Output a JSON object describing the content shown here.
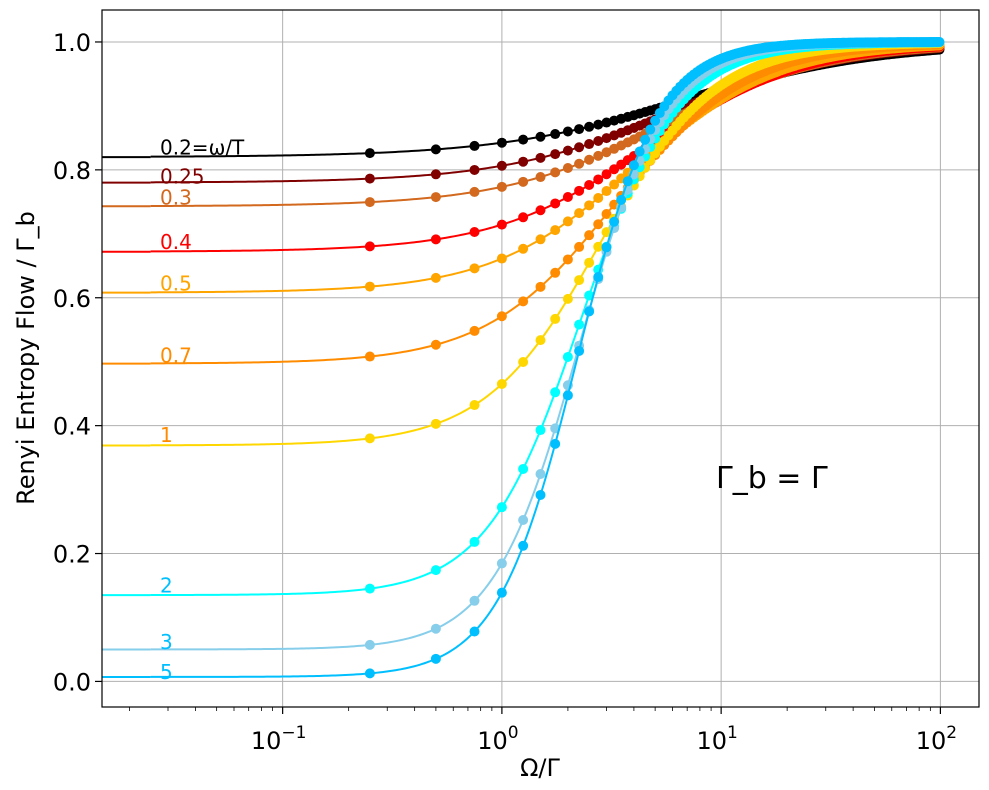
{
  "chart_data": {
    "type": "line",
    "xscale": "log",
    "xlim": [
      0.015,
      150
    ],
    "ylim": [
      -0.04,
      1.05
    ],
    "xlabel": "Ω/Γ",
    "ylabel": "Renyi Entropy Flow / Γ_b",
    "annotation": "Γ_b = Γ",
    "x_ticks": [
      {
        "value": 0.1,
        "base": "10",
        "exp": "−1"
      },
      {
        "value": 1,
        "base": "10",
        "exp": "0"
      },
      {
        "value": 10,
        "base": "10",
        "exp": "1"
      },
      {
        "value": 100,
        "base": "10",
        "exp": "2"
      }
    ],
    "y_ticks": [
      {
        "value": 0.0,
        "label": "0.0"
      },
      {
        "value": 0.2,
        "label": "0.2"
      },
      {
        "value": 0.4,
        "label": "0.4"
      },
      {
        "value": 0.6,
        "label": "0.6"
      },
      {
        "value": 0.8,
        "label": "0.8"
      },
      {
        "value": 1.0,
        "label": "1.0"
      }
    ],
    "x_range_data": [
      0.025,
      100
    ],
    "series": [
      {
        "name": "0.2",
        "label": "0.2=ω/T",
        "ratio": 0.2,
        "low_value": 0.82,
        "high_value": 1.0,
        "x_half": 7.0,
        "width": 1.0,
        "color": "#000000",
        "label_color": "#000000",
        "label_y": 0.835
      },
      {
        "name": "0.25",
        "label": "0.25",
        "ratio": 0.25,
        "low_value": 0.78,
        "high_value": 1.0,
        "x_half": 6.0,
        "width": 0.9,
        "color": "#800000",
        "label_color": "#800000",
        "label_y": 0.79
      },
      {
        "name": "0.3",
        "label": "0.3",
        "ratio": 0.3,
        "low_value": 0.743,
        "high_value": 1.0,
        "x_half": 5.5,
        "width": 0.85,
        "color": "#d2691e",
        "label_color": "#d2691e",
        "label_y": 0.757
      },
      {
        "name": "0.4",
        "label": "0.4",
        "ratio": 0.4,
        "low_value": 0.672,
        "high_value": 1.0,
        "x_half": 4.6,
        "width": 0.8,
        "color": "#ff0000",
        "label_color": "#ff0000",
        "label_y": 0.687
      },
      {
        "name": "0.5",
        "label": "0.5",
        "ratio": 0.5,
        "low_value": 0.608,
        "high_value": 1.0,
        "x_half": 4.0,
        "width": 0.75,
        "color": "#ffa500",
        "label_color": "#ffa500",
        "label_y": 0.622
      },
      {
        "name": "0.7",
        "label": "0.7",
        "ratio": 0.7,
        "low_value": 0.497,
        "high_value": 1.0,
        "x_half": 3.3,
        "width": 0.68,
        "color": "#ff8c00",
        "label_color": "#ff8c00",
        "label_y": 0.51
      },
      {
        "name": "1",
        "label": "1",
        "ratio": 1,
        "low_value": 0.369,
        "high_value": 1.0,
        "x_half": 2.8,
        "width": 0.6,
        "color": "#ffd700",
        "label_color": "#ff8c00",
        "label_y": 0.385
      },
      {
        "name": "2",
        "label": "2",
        "ratio": 2,
        "low_value": 0.135,
        "high_value": 1.0,
        "x_half": 2.3,
        "width": 0.5,
        "color": "#00ffff",
        "label_color": "#00bfff",
        "label_y": 0.15
      },
      {
        "name": "3",
        "label": "3",
        "ratio": 3,
        "low_value": 0.05,
        "high_value": 1.0,
        "x_half": 2.25,
        "width": 0.45,
        "color": "#87ceeb",
        "label_color": "#00bfff",
        "label_y": 0.062
      },
      {
        "name": "5",
        "label": "5",
        "ratio": 5,
        "low_value": 0.007,
        "high_value": 1.0,
        "x_half": 2.2,
        "width": 0.42,
        "color": "#00bfff",
        "label_color": "#00bfff",
        "label_y": 0.015
      }
    ]
  }
}
